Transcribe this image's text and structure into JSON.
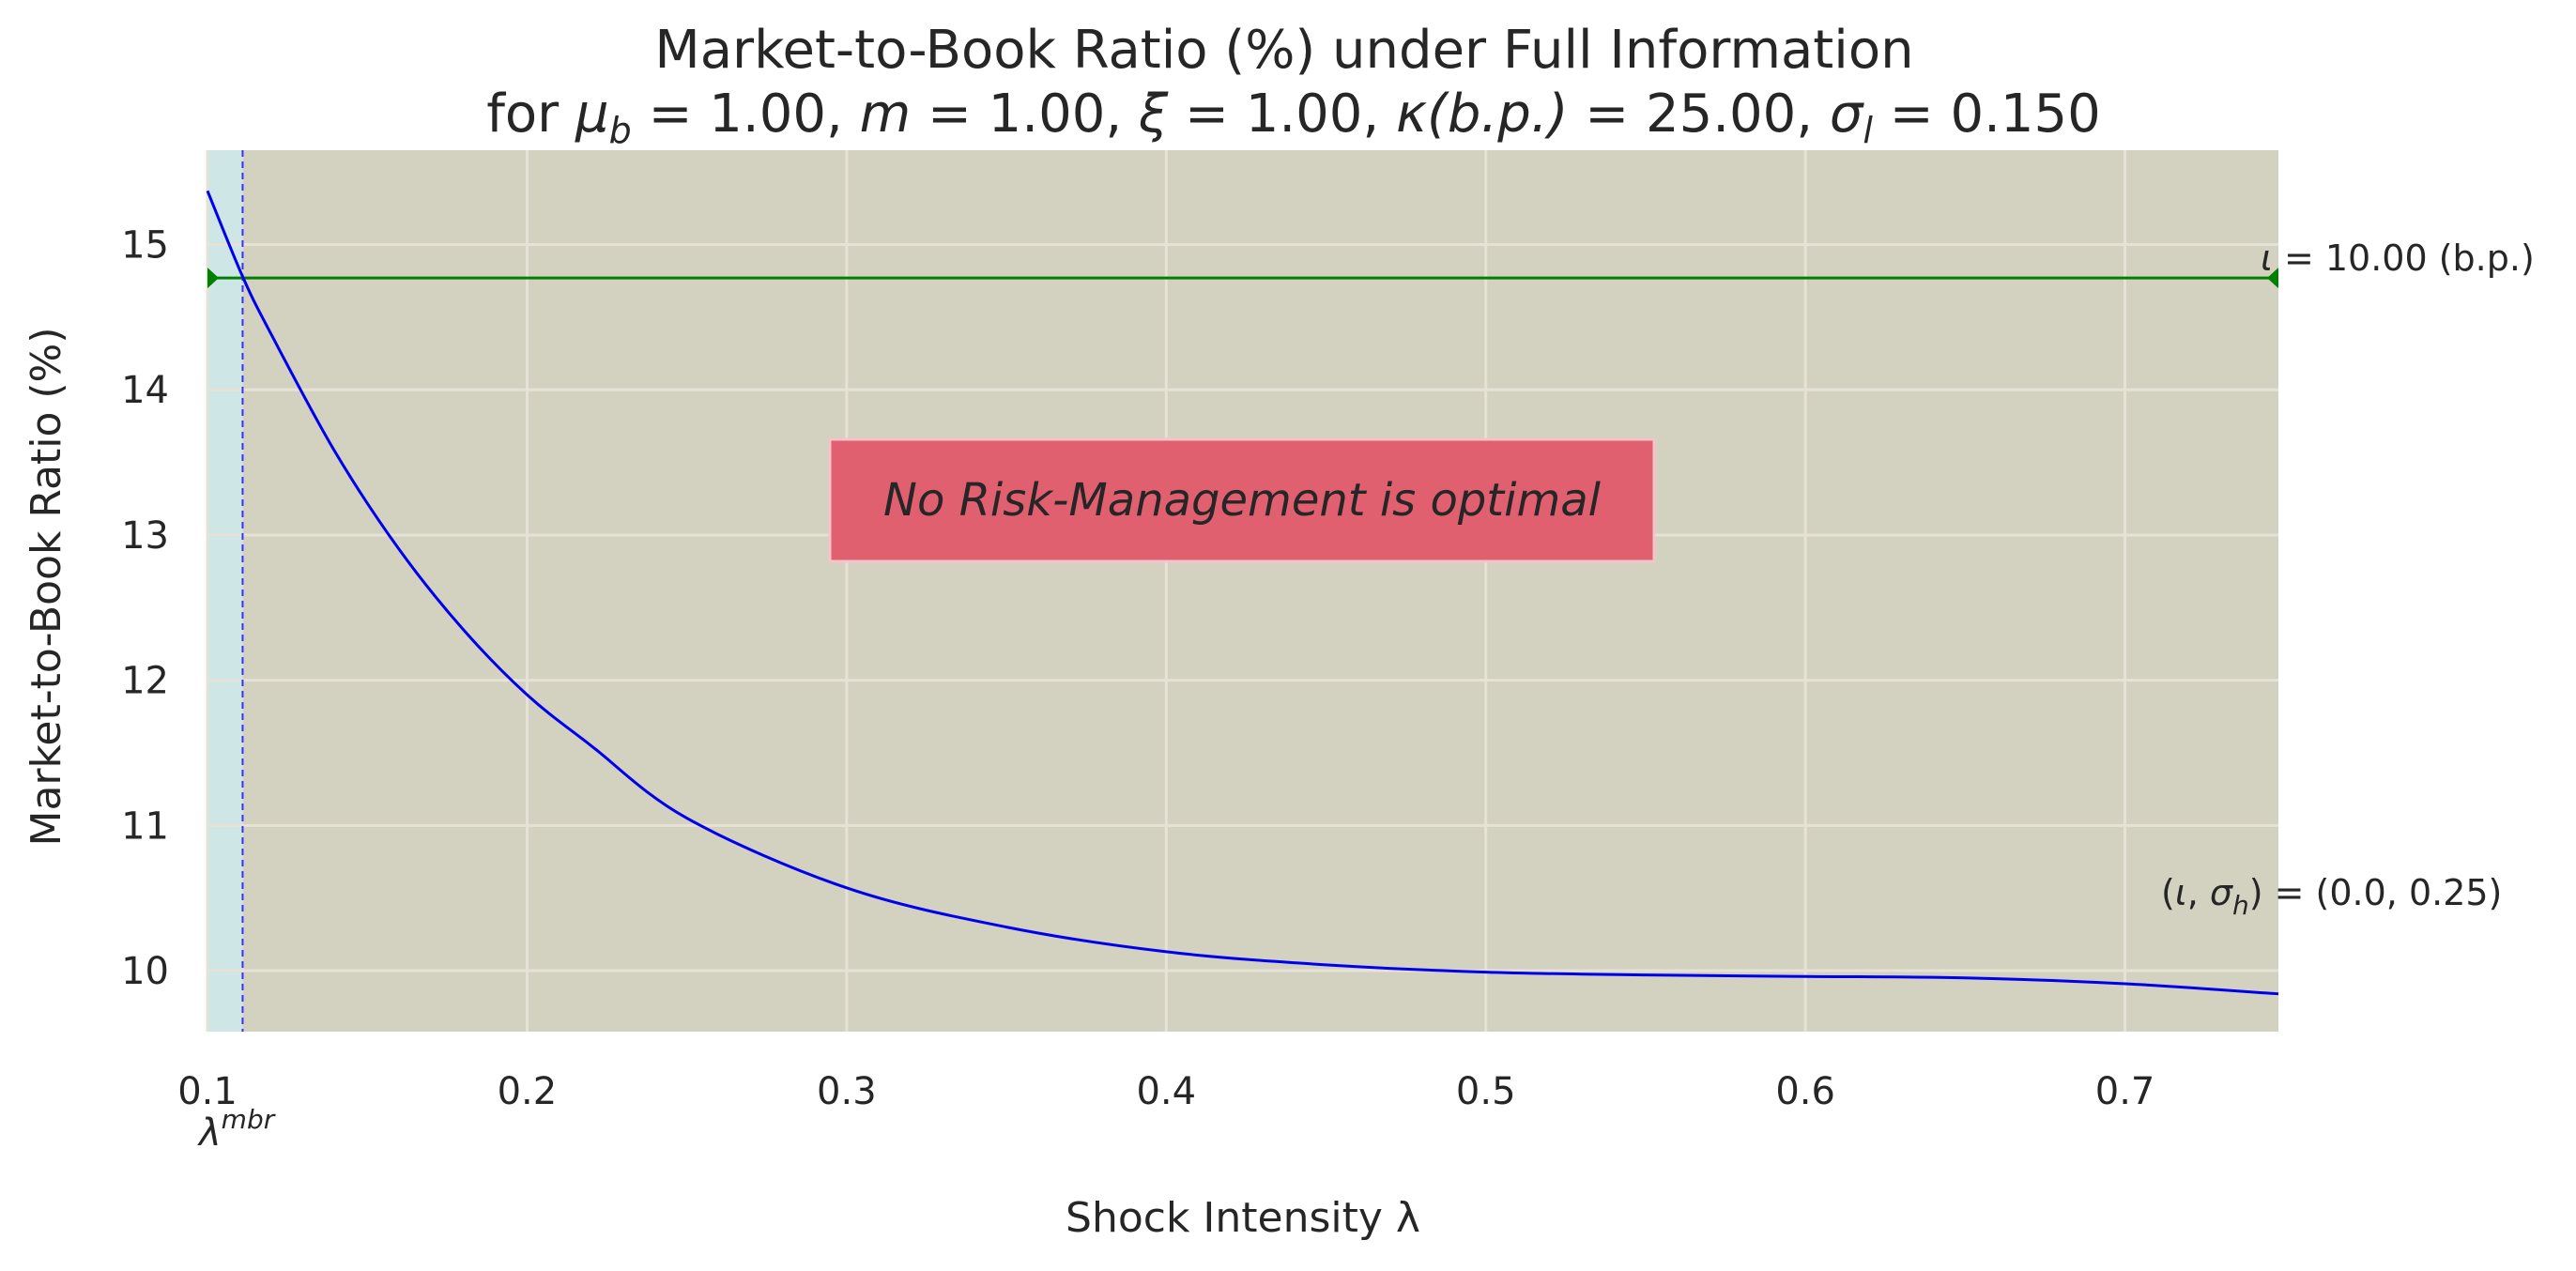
{
  "chart_data": {
    "type": "line",
    "title_line1": "Market-to-Book Ratio (%) under Full Information",
    "title_line2": {
      "prefix": "for ",
      "mu_b": "μ",
      "mu_b_sub": "b",
      "mu_b_value": " =  1.00, ",
      "m_symbol": "m",
      "m_value": " =  1.00, ",
      "xi_symbol": "ξ",
      "xi_value": " =  1.00, ",
      "kappa_symbol": "κ",
      "kappa_arg": "(b.p.)",
      "kappa_value": " =  25.00, ",
      "sigma_symbol": "σ",
      "sigma_sub": "l",
      "sigma_value": " =  0.150"
    },
    "xlabel": "Shock Intensity λ",
    "ylabel": "Market-to-Book Ratio (%)",
    "xlim": [
      0.1,
      0.748
    ],
    "ylim": [
      9.58,
      15.65
    ],
    "x_ticks": [
      0.1,
      0.2,
      0.3,
      0.4,
      0.5,
      0.6,
      0.7
    ],
    "x_tick_labels": [
      "0.1",
      "0.2",
      "0.3",
      "0.4",
      "0.5",
      "0.6",
      "0.7"
    ],
    "y_ticks": [
      10,
      11,
      12,
      13,
      14,
      15
    ],
    "y_tick_labels": [
      "10",
      "11",
      "12",
      "13",
      "14",
      "15"
    ],
    "grid": true,
    "series": [
      {
        "color": "#0000ee",
        "x": [
          0.1,
          0.111,
          0.12,
          0.14,
          0.16,
          0.18,
          0.2,
          0.22,
          0.25,
          0.3,
          0.35,
          0.4,
          0.45,
          0.5,
          0.55,
          0.6,
          0.65,
          0.7,
          0.748
        ],
        "y": [
          15.37,
          14.78,
          14.38,
          13.57,
          12.9,
          12.35,
          11.9,
          11.55,
          11.05,
          10.57,
          10.3,
          10.13,
          10.04,
          9.99,
          9.97,
          9.96,
          9.95,
          9.91,
          9.84
        ]
      }
    ],
    "hline": {
      "y": 14.77,
      "color": "#008000"
    },
    "vline": {
      "x": 0.111,
      "label_main": "λ",
      "label_sup": "mbr",
      "color": "#3333ff"
    },
    "regions": [
      {
        "x0": 0.1,
        "x1": 0.111,
        "color": "#cfe6e6"
      },
      {
        "x0": 0.111,
        "x1": 0.748,
        "color": "#d3d1c0"
      }
    ],
    "annotation_iota": {
      "symbol": "ι",
      "text": " = 10.00 (b.p.)",
      "at_y": 14.85
    },
    "annotation_pair": {
      "prefix": "(",
      "iota": "ι",
      "comma": ", ",
      "sigma": "σ",
      "sigma_sub": "h",
      "text": ") = (0.0, 0.25)",
      "at_y": 10.5
    },
    "box_text": "No Risk-Management is optimal",
    "box_color": "#e06070"
  }
}
